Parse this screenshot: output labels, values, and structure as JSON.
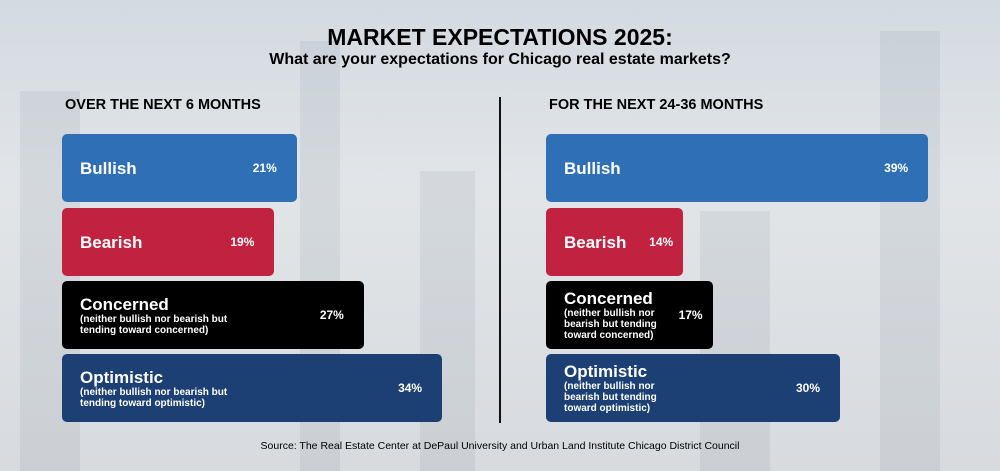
{
  "title": "MARKET EXPECTATIONS 2025:",
  "subtitle": "What are your expectations for Chicago real estate markets?",
  "source": "Source: The Real Estate Center at DePaul University and Urban Land Institute Chicago District Council",
  "chart_data": [
    {
      "type": "bar",
      "orientation": "horizontal",
      "title": "OVER THE NEXT 6 MONTHS",
      "categories": [
        "Bullish",
        "Bearish",
        "Concerned",
        "Optimistic"
      ],
      "descriptions": [
        null,
        null,
        "(neither bullish nor bearish but tending toward concerned)",
        "(neither bullish nor bearish but tending toward optimistic)"
      ],
      "values": [
        21,
        19,
        27,
        34
      ],
      "value_labels": [
        "21%",
        "19%",
        "27%",
        "34%"
      ],
      "colors": [
        "#2f6fb6",
        "#c0223f",
        "#000000",
        "#1c3f74"
      ]
    },
    {
      "type": "bar",
      "orientation": "horizontal",
      "title": "FOR THE NEXT 24-36 MONTHS",
      "categories": [
        "Bullish",
        "Bearish",
        "Concerned",
        "Optimistic"
      ],
      "descriptions": [
        null,
        null,
        "(neither bullish nor bearish but tending toward concerned)",
        "(neither bullish nor bearish but tending toward optimistic)"
      ],
      "values": [
        39,
        14,
        17,
        30
      ],
      "value_labels": [
        "39%",
        "14%",
        "17%",
        "30%"
      ],
      "colors": [
        "#2f6fb6",
        "#c0223f",
        "#000000",
        "#1c3f74"
      ]
    }
  ]
}
